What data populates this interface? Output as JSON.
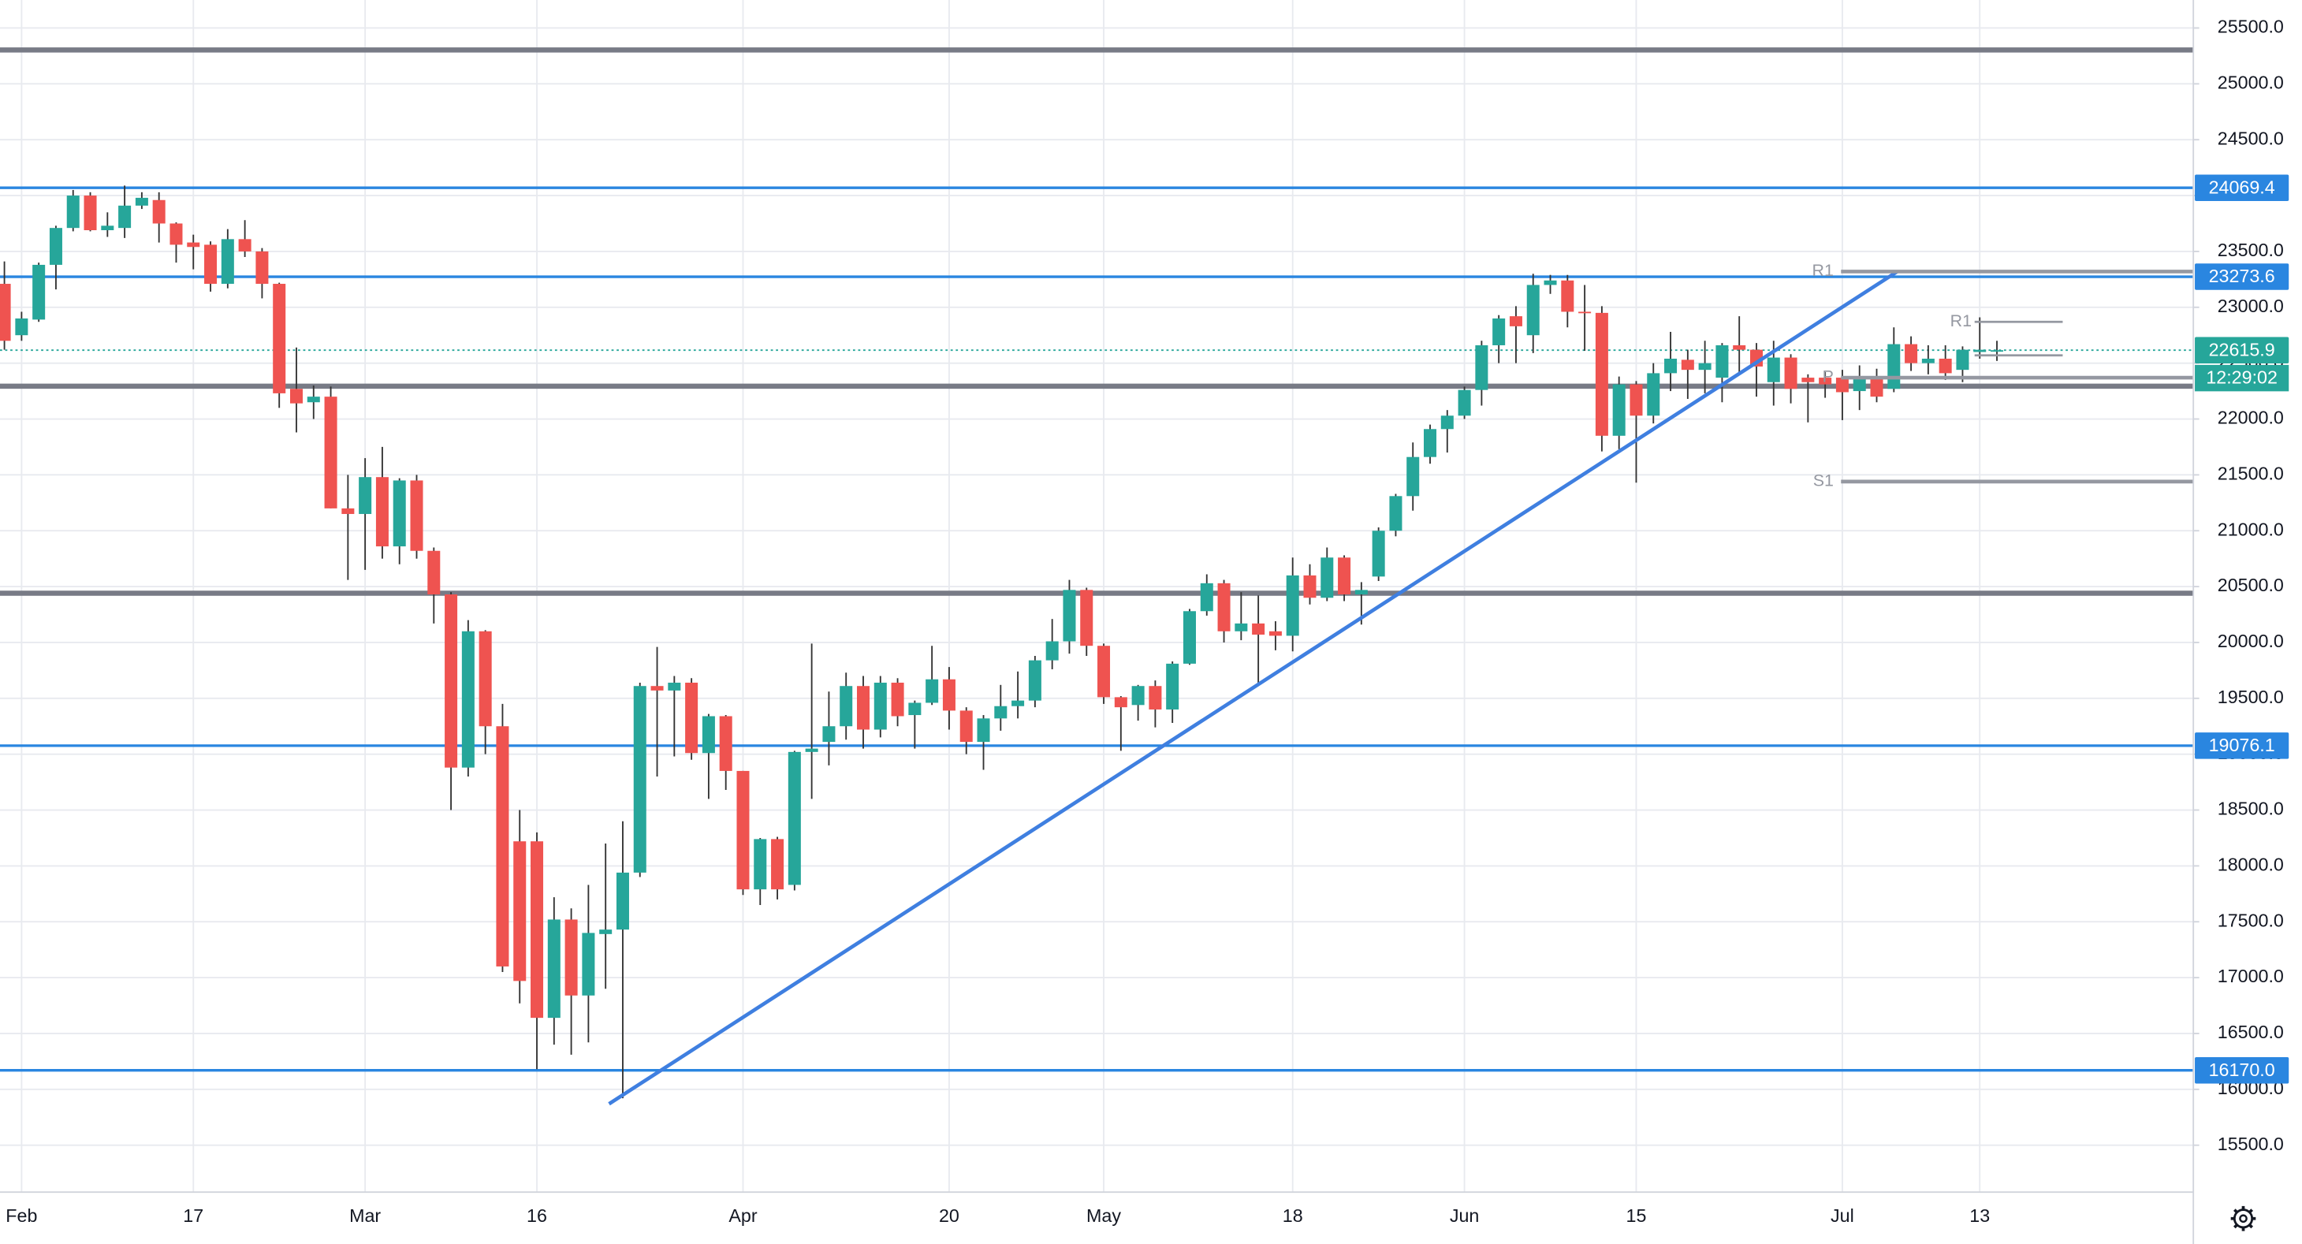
{
  "chart_data": {
    "type": "candlestick",
    "categories": [
      null,
      "Feb",
      null,
      null,
      null,
      null,
      null,
      null,
      null,
      null,
      null,
      "17",
      null,
      null,
      null,
      null,
      null,
      null,
      null,
      null,
      null,
      "Mar",
      null,
      null,
      null,
      null,
      null,
      null,
      null,
      null,
      null,
      "16",
      null,
      null,
      null,
      null,
      null,
      null,
      null,
      null,
      null,
      null,
      null,
      "Apr",
      null,
      null,
      null,
      null,
      null,
      null,
      null,
      null,
      null,
      null,
      null,
      "20",
      null,
      null,
      null,
      null,
      null,
      null,
      null,
      null,
      "May",
      null,
      null,
      null,
      null,
      null,
      null,
      null,
      null,
      null,
      null,
      "18",
      null,
      null,
      null,
      null,
      null,
      null,
      null,
      null,
      null,
      "Jun",
      null,
      null,
      null,
      null,
      null,
      null,
      null,
      null,
      null,
      "15",
      null,
      null,
      null,
      null,
      null,
      null,
      null,
      null,
      null,
      null,
      null,
      "Jul",
      null,
      null,
      null,
      null,
      null,
      null,
      null,
      "13",
      null
    ],
    "open": [
      23210,
      22750,
      22890,
      23380,
      23710,
      24000,
      23690,
      23710,
      23910,
      23960,
      23750,
      23580,
      23560,
      23210,
      23610,
      23500,
      23210,
      22270,
      22150,
      22200,
      21200,
      21150,
      21480,
      20860,
      21450,
      20820,
      20430,
      18880,
      20100,
      19250,
      18220,
      18220,
      16640,
      17520,
      16840,
      17390,
      17430,
      17940,
      19610,
      19570,
      19640,
      19010,
      19340,
      18850,
      17790,
      18240,
      17830,
      19020,
      19110,
      19250,
      19610,
      19220,
      19640,
      19350,
      19460,
      19670,
      19390,
      19110,
      19320,
      19430,
      19480,
      19840,
      20010,
      20470,
      19970,
      19510,
      19440,
      19610,
      19400,
      19810,
      20280,
      20530,
      20100,
      20170,
      20100,
      20060,
      20600,
      20400,
      20760,
      20430,
      20590,
      21000,
      21310,
      21660,
      21910,
      22030,
      22260,
      22660,
      22920,
      22750,
      23200,
      23240,
      22960,
      22950,
      21850,
      22310,
      22030,
      22410,
      22530,
      22440,
      22370,
      22660,
      22620,
      22330,
      22550,
      22370,
      22370,
      22370,
      22250,
      22370,
      22270,
      22670,
      22500,
      22540,
      22440,
      22600,
      22610
    ],
    "high": [
      23410,
      22960,
      23400,
      23730,
      24050,
      24030,
      23850,
      24090,
      24030,
      24030,
      23760,
      23650,
      23590,
      23700,
      23780,
      23530,
      23220,
      22640,
      22300,
      22290,
      21500,
      21650,
      21750,
      21470,
      21500,
      20850,
      20450,
      20200,
      20110,
      19450,
      18500,
      18300,
      17720,
      17620,
      17830,
      18200,
      18400,
      19640,
      19960,
      19700,
      19680,
      19360,
      19350,
      18850,
      18250,
      18260,
      19030,
      19990,
      19560,
      19730,
      19700,
      19700,
      19680,
      19480,
      19970,
      19780,
      19420,
      19350,
      19620,
      19740,
      19880,
      20210,
      20560,
      20490,
      19990,
      19520,
      19620,
      19660,
      19830,
      20300,
      20610,
      20560,
      20450,
      20420,
      20190,
      20760,
      20700,
      20850,
      20780,
      20540,
      21030,
      21330,
      21790,
      21950,
      22080,
      22290,
      22700,
      22930,
      23010,
      23300,
      23290,
      23290,
      23200,
      23010,
      22380,
      22340,
      22500,
      22780,
      22620,
      22700,
      22680,
      22920,
      22680,
      22700,
      22580,
      22400,
      22420,
      22440,
      22480,
      22450,
      22820,
      22740,
      22660,
      22660,
      22650,
      22910,
      22700
    ],
    "low": [
      22620,
      22700,
      22870,
      23160,
      23680,
      23680,
      23630,
      23620,
      23880,
      23580,
      23400,
      23340,
      23140,
      23170,
      23450,
      23080,
      22100,
      21880,
      22000,
      21200,
      20560,
      20650,
      20750,
      20700,
      20750,
      20170,
      18500,
      18800,
      19000,
      17050,
      16770,
      16180,
      16400,
      16310,
      16420,
      16900,
      15920,
      17900,
      18800,
      18980,
      18950,
      18600,
      18680,
      17740,
      17650,
      17700,
      17780,
      18600,
      18900,
      19130,
      19050,
      19150,
      19250,
      19050,
      19440,
      19220,
      19000,
      18860,
      19210,
      19320,
      19420,
      19760,
      19900,
      19880,
      19450,
      19030,
      19300,
      19240,
      19280,
      19800,
      20240,
      20000,
      20020,
      19640,
      19930,
      19920,
      20340,
      20370,
      20370,
      20160,
      20550,
      20950,
      21180,
      21600,
      21700,
      22000,
      22120,
      22500,
      22500,
      22590,
      23120,
      22820,
      22610,
      21710,
      21730,
      21430,
      21960,
      22250,
      22180,
      22230,
      22150,
      22410,
      22200,
      22120,
      22140,
      21970,
      22190,
      21990,
      22080,
      22150,
      22240,
      22430,
      22400,
      22350,
      22330,
      22540,
      22520
    ],
    "close": [
      22700,
      22900,
      23380,
      23710,
      24000,
      23690,
      23730,
      23910,
      23980,
      23750,
      23560,
      23540,
      23210,
      23610,
      23500,
      23210,
      22230,
      22140,
      22200,
      21200,
      21150,
      21480,
      20860,
      21450,
      20820,
      20430,
      18880,
      20100,
      19250,
      17100,
      16970,
      16640,
      17520,
      16840,
      17400,
      17430,
      17940,
      19610,
      19570,
      19640,
      19010,
      19340,
      18850,
      17790,
      18240,
      17790,
      19020,
      19050,
      19250,
      19610,
      19220,
      19640,
      19340,
      19460,
      19670,
      19390,
      19110,
      19320,
      19430,
      19480,
      19840,
      20010,
      20470,
      19970,
      19510,
      19420,
      19610,
      19400,
      19810,
      20280,
      20530,
      20100,
      20170,
      20070,
      20060,
      20600,
      20400,
      20760,
      20430,
      20470,
      21000,
      21310,
      21660,
      21910,
      22030,
      22260,
      22660,
      22900,
      22830,
      23200,
      23240,
      22960,
      22950,
      21850,
      22310,
      22030,
      22410,
      22540,
      22440,
      22500,
      22660,
      22620,
      22470,
      22550,
      22270,
      22330,
      22310,
      22240,
      22370,
      22200,
      22670,
      22500,
      22540,
      22410,
      22620,
      22620,
      22615.9
    ],
    "up_color": "#26a69a",
    "down_color": "#ef5350",
    "ylim": [
      15080,
      25750
    ],
    "yticks": [
      {
        "value": 15500,
        "label": "15500.0"
      },
      {
        "value": 16000,
        "label": "16000.0"
      },
      {
        "value": 16500,
        "label": "16500.0"
      },
      {
        "value": 17000,
        "label": "17000.0"
      },
      {
        "value": 17500,
        "label": "17500.0"
      },
      {
        "value": 18000,
        "label": "18000.0"
      },
      {
        "value": 18500,
        "label": "18500.0"
      },
      {
        "value": 19000,
        "label": "19000.0"
      },
      {
        "value": 19500,
        "label": "19500.0"
      },
      {
        "value": 20000,
        "label": "20000.0"
      },
      {
        "value": 20500,
        "label": "20500.0"
      },
      {
        "value": 21000,
        "label": "21000.0"
      },
      {
        "value": 21500,
        "label": "21500.0"
      },
      {
        "value": 22000,
        "label": "22000.0"
      },
      {
        "value": 22500,
        "label": "22500.0"
      },
      {
        "value": 23000,
        "label": "23000.0"
      },
      {
        "value": 23500,
        "label": "23500.0"
      },
      {
        "value": 24000,
        "label": "24000.0"
      },
      {
        "value": 24500,
        "label": "24500.0"
      },
      {
        "value": 25000,
        "label": "25000.0"
      },
      {
        "value": 25500,
        "label": "25500.0"
      }
    ],
    "grid": true,
    "price_levels": [
      24069.4,
      23273.6,
      19076.1,
      {
        "value": 16170,
        "label": "16170.0"
      }
    ],
    "level_color": "#2a86e0",
    "support_lines": [
      25303,
      22294,
      20441
    ],
    "support_color": "#787b86",
    "trendline": {
      "x": [
        35.2,
        110.2
      ],
      "y": [
        15870,
        23320
      ],
      "color": "#3f7fe0"
    },
    "pivots": [
      {
        "label": "R1",
        "value": 23320
      },
      {
        "label": "P",
        "value": 22370
      },
      {
        "label": "S1",
        "value": 21440
      }
    ],
    "weekly_pivots": [
      {
        "label": "R1",
        "value": 22870
      },
      {
        "label": null,
        "value": 22570
      }
    ],
    "pivot_color": "#9598a1",
    "last_price": 22615.9,
    "countdown": "12:29:02"
  }
}
